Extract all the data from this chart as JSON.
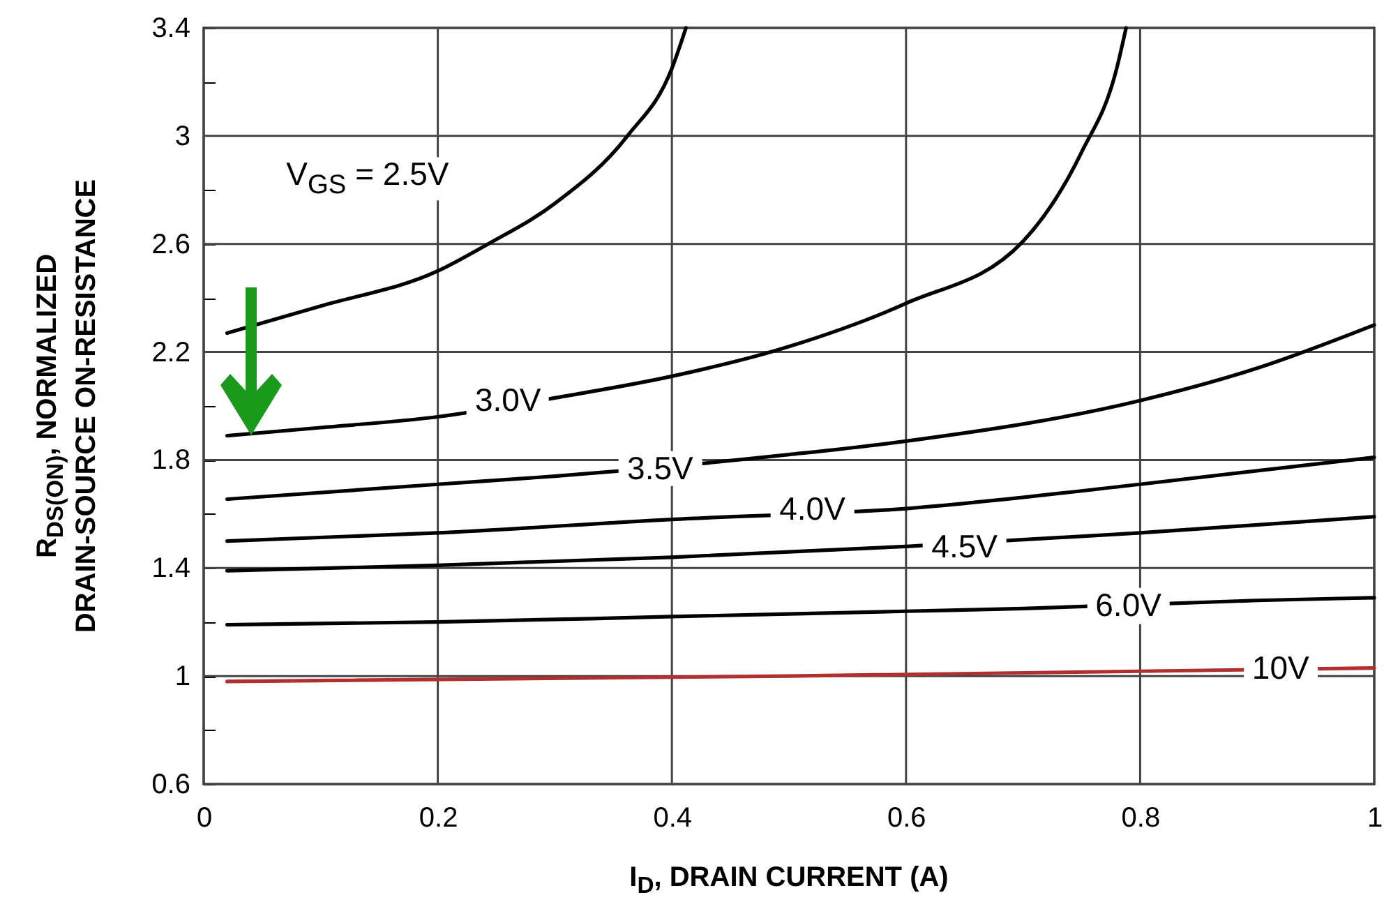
{
  "chart_data": {
    "type": "line",
    "xlabel": "I$_{D}$, DRAIN CURRENT (A)",
    "ylabel": "R$_{DS(ON)}$, NORMALIZED\nDRAIN-SOURCE ON-RESISTANCE",
    "xlim": [
      0,
      1
    ],
    "xticks": [
      0,
      0.2,
      0.4,
      0.6,
      0.8,
      1
    ],
    "ylim": [
      0.6,
      3.4
    ],
    "yticks": [
      0.6,
      {
        "value": 0.8,
        "label": null
      },
      1,
      {
        "value": 1.2,
        "label": null
      },
      1.4,
      {
        "value": 1.6,
        "label": null
      },
      1.8,
      {
        "value": 2.0,
        "label": null
      },
      2.2,
      {
        "value": 2.4,
        "label": null
      },
      2.6,
      {
        "value": 2.8,
        "label": null
      },
      3,
      {
        "value": 3.2,
        "label": null
      },
      3.4
    ],
    "grid": true,
    "series": [
      {
        "color": "#000000",
        "x": [
          0.02,
          0.1,
          0.2,
          0.243,
          0.3,
          0.362,
          0.4,
          0.412
        ],
        "values": [
          2.27,
          2.37,
          2.5,
          2.6,
          2.75,
          3.0,
          3.25,
          3.4
        ]
      },
      {
        "color": "#000000",
        "x": [
          0.02,
          0.1,
          0.2,
          0.3,
          0.4,
          0.5,
          0.6,
          0.7,
          0.75,
          0.78,
          0.788
        ],
        "values": [
          1.89,
          1.92,
          1.96,
          2.03,
          2.11,
          2.22,
          2.38,
          2.61,
          2.94,
          3.25,
          3.4
        ]
      },
      {
        "color": "#000000",
        "x": [
          0.02,
          0.2,
          0.3,
          0.5,
          0.6,
          0.8,
          0.9,
          1.0
        ],
        "values": [
          1.655,
          1.71,
          1.74,
          1.82,
          1.87,
          2.02,
          2.14,
          2.3
        ]
      },
      {
        "color": "#000000",
        "x": [
          0.02,
          0.2,
          0.4,
          0.6,
          0.8,
          1.0
        ],
        "values": [
          1.5,
          1.53,
          1.58,
          1.62,
          1.71,
          1.81
        ]
      },
      {
        "color": "#000000",
        "x": [
          0.02,
          0.2,
          0.4,
          0.6,
          0.8,
          1.0
        ],
        "values": [
          1.39,
          1.41,
          1.44,
          1.48,
          1.53,
          1.59
        ]
      },
      {
        "color": "#000000",
        "x": [
          0.02,
          0.2,
          0.4,
          0.6,
          0.7,
          0.9,
          1.0
        ],
        "values": [
          1.19,
          1.2,
          1.22,
          1.24,
          1.25,
          1.28,
          1.29
        ]
      },
      {
        "color": "#b03030",
        "x": [
          0.02,
          0.5,
          1.0
        ],
        "values": [
          0.98,
          1.0,
          1.03
        ]
      }
    ],
    "annotations": [
      "V$_{GS}$ = 2.5V",
      {
        "text": "3.0V",
        "x": 0.26,
        "y": 2.02
      },
      {
        "text": "3.5V",
        "x": 0.39,
        "y": 1.77
      },
      {
        "text": "4.0V",
        "x": 0.52,
        "y": 1.62
      },
      {
        "text": "4.5V",
        "x": 0.65,
        "y": 1.48
      },
      {
        "text": "6.0V",
        "x": 0.79,
        "y": 1.26
      },
      {
        "text": "10V",
        "x": 0.92,
        "y": 1.03
      }
    ]
  }
}
